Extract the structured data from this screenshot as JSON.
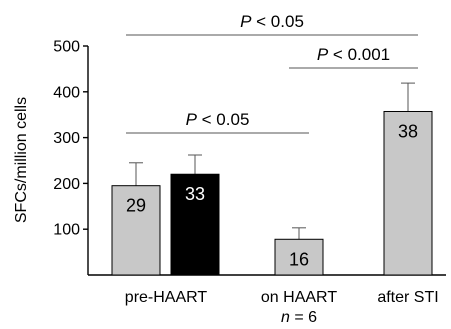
{
  "chart_data": {
    "type": "bar",
    "ylabel": "SFCs/million cells",
    "ylim": [
      0,
      500
    ],
    "yticks": [
      100,
      200,
      300,
      400,
      500
    ],
    "bars": [
      {
        "group": "pre-HAART",
        "value": 195,
        "error": 50,
        "label": "29",
        "color": "#c8c8c8",
        "label_color": "#000000"
      },
      {
        "group": "pre-HAART",
        "value": 220,
        "error": 42,
        "label": "33",
        "color": "#000000",
        "label_color": "#ffffff"
      },
      {
        "group": "on HAART",
        "value": 78,
        "error": 25,
        "label": "16",
        "color": "#c8c8c8",
        "label_color": "#000000"
      },
      {
        "group": "after STI",
        "value": 357,
        "error": 62,
        "label": "38",
        "color": "#c8c8c8",
        "label_color": "#000000"
      }
    ],
    "category_labels": [
      {
        "line1": "pre-HAART"
      },
      {
        "line1": "on HAART",
        "line2_italic": "n",
        "line2_rest": " = 6"
      },
      {
        "line1": "after STI"
      }
    ],
    "annotations": [
      {
        "from_bar": 0,
        "to_bar": 3,
        "p_italic": "P",
        "text": " < 0.05"
      },
      {
        "from_bar": 2,
        "to_bar": 3,
        "p_italic": "P",
        "text": " < 0.001"
      },
      {
        "from_bar": 0,
        "to_bar": 2,
        "p_italic": "P",
        "text": " < 0.05"
      }
    ]
  }
}
